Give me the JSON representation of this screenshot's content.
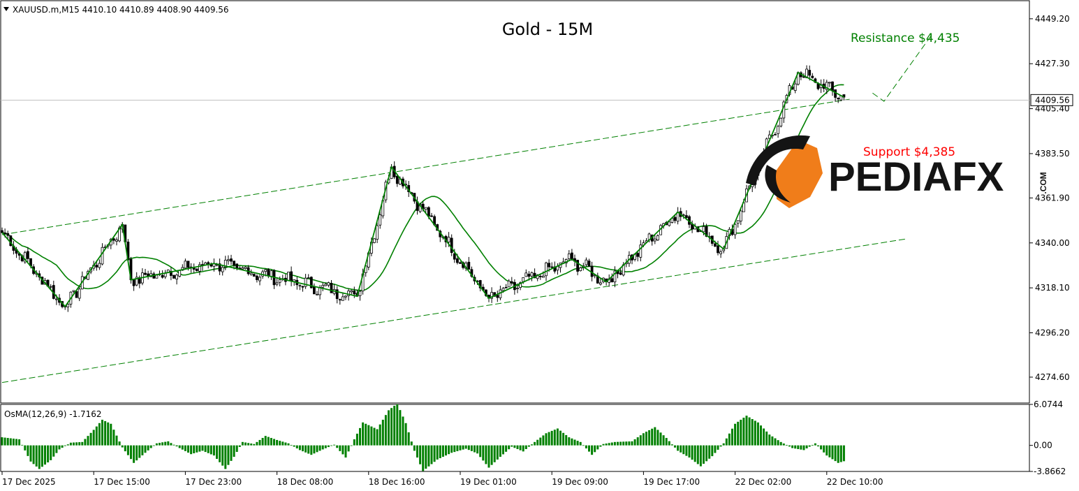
{
  "header": {
    "symbol_info": "XAUUSD.m,M15  4410.10 4410.89 4408.90 4409.56",
    "chart_title": "Gold - 15M",
    "indicator_label": "OsMA(12,26,9) -1.7162"
  },
  "annotations": {
    "resistance": "Resistance  $4,435",
    "support": "Support $4,385"
  },
  "logo": {
    "text": "PEDIAFX",
    "suffix": ".COM"
  },
  "colors": {
    "bull": "#008000",
    "support": "#ff0000",
    "logo_orange": "#f07d1a",
    "logo_dark": "#141414",
    "price_line": "#c0c0c0"
  },
  "chart_data": {
    "type": "candlestick",
    "symbol": "XAUUSD.m",
    "timeframe": "M15",
    "ohlc_last": {
      "open": 4410.1,
      "high": 4410.89,
      "low": 4408.9,
      "close": 4409.56
    },
    "current_price": 4409.56,
    "price_axis": {
      "ylim": [
        4262.0,
        4458.0
      ],
      "ticks": [
        4449.2,
        4427.3,
        4405.4,
        4383.5,
        4361.9,
        4340.0,
        4318.1,
        4296.2,
        4274.6
      ],
      "tick_labels": [
        "4449.20",
        "4427.30",
        "4405.40",
        "4383.50",
        "4361.90",
        "4340.00",
        "4318.10",
        "4296.20",
        "4274.60"
      ],
      "current_label": "4409.56"
    },
    "time_axis": {
      "labels": [
        "17 Dec 2025",
        "17 Dec 15:00",
        "17 Dec 23:00",
        "18 Dec 08:00",
        "18 Dec 16:00",
        "19 Dec 01:00",
        "19 Dec 09:00",
        "19 Dec 17:00",
        "22 Dec 02:00",
        "22 Dec 10:00"
      ],
      "bar_index": [
        0,
        32,
        64,
        96,
        128,
        160,
        192,
        224,
        256,
        288
      ]
    },
    "zigzag": [
      [
        0,
        4345
      ],
      [
        22,
        4309
      ],
      [
        42,
        4349
      ],
      [
        45,
        4322
      ],
      [
        74,
        4330
      ],
      [
        124,
        4314
      ],
      [
        136,
        4377
      ],
      [
        170,
        4313
      ],
      [
        199,
        4332
      ],
      [
        211,
        4321
      ],
      [
        236,
        4355
      ],
      [
        252,
        4337
      ],
      [
        278,
        4423
      ],
      [
        294,
        4411
      ]
    ],
    "channel": {
      "upper": [
        [
          0,
          4344
        ],
        [
          296,
          4410
        ]
      ],
      "lower": [
        [
          0,
          4272
        ],
        [
          316,
          4342
        ]
      ]
    },
    "projection": [
      [
        304,
        4413
      ],
      [
        308,
        4409
      ],
      [
        325,
        4442
      ]
    ],
    "resistance": 4435,
    "support": 4385,
    "osma": {
      "label": "OsMA(12,26,9)",
      "last_value": -1.7162,
      "ylim": [
        -3.8662,
        6.0744
      ],
      "ticks": [
        6.0744,
        0.0,
        -3.8662
      ],
      "tick_labels": [
        "6.0744",
        "0.00",
        "-3.8662"
      ],
      "samples": [
        [
          0,
          1.2
        ],
        [
          6,
          0.9
        ],
        [
          10,
          -2.4
        ],
        [
          13,
          -3.5
        ],
        [
          17,
          -2.2
        ],
        [
          20,
          -0.6
        ],
        [
          24,
          0.4
        ],
        [
          28,
          0.5
        ],
        [
          32,
          2.3
        ],
        [
          35,
          3.8
        ],
        [
          38,
          3.2
        ],
        [
          42,
          -0.3
        ],
        [
          46,
          -2.6
        ],
        [
          50,
          -1.1
        ],
        [
          54,
          0.3
        ],
        [
          58,
          0.6
        ],
        [
          62,
          -0.4
        ],
        [
          66,
          -1.3
        ],
        [
          70,
          -0.8
        ],
        [
          74,
          -1.5
        ],
        [
          78,
          -3.5
        ],
        [
          81,
          -1.7
        ],
        [
          84,
          0.5
        ],
        [
          88,
          0.2
        ],
        [
          92,
          1.4
        ],
        [
          96,
          0.8
        ],
        [
          100,
          0.3
        ],
        [
          104,
          -0.7
        ],
        [
          108,
          -1.4
        ],
        [
          112,
          -0.6
        ],
        [
          116,
          0.1
        ],
        [
          120,
          -1.8
        ],
        [
          123,
          0.9
        ],
        [
          126,
          3.4
        ],
        [
          131,
          2.4
        ],
        [
          135,
          5.2
        ],
        [
          138,
          6.2
        ],
        [
          141,
          3.3
        ],
        [
          144,
          -0.8
        ],
        [
          147,
          -3.8
        ],
        [
          152,
          -2.1
        ],
        [
          157,
          -1.1
        ],
        [
          162,
          -0.5
        ],
        [
          166,
          -1.2
        ],
        [
          170,
          -3.3
        ],
        [
          174,
          -1.7
        ],
        [
          178,
          -0.2
        ],
        [
          182,
          -0.9
        ],
        [
          186,
          0.5
        ],
        [
          190,
          1.8
        ],
        [
          194,
          2.5
        ],
        [
          198,
          1.2
        ],
        [
          202,
          0.5
        ],
        [
          206,
          -1.4
        ],
        [
          210,
          0.2
        ],
        [
          214,
          0.5
        ],
        [
          220,
          0.6
        ],
        [
          224,
          1.8
        ],
        [
          228,
          2.7
        ],
        [
          232,
          1.1
        ],
        [
          236,
          -0.8
        ],
        [
          240,
          -1.8
        ],
        [
          244,
          -3.1
        ],
        [
          248,
          -1.6
        ],
        [
          252,
          0.3
        ],
        [
          256,
          3.2
        ],
        [
          260,
          4.4
        ],
        [
          264,
          3.4
        ],
        [
          268,
          1.6
        ],
        [
          272,
          0.5
        ],
        [
          276,
          -0.4
        ],
        [
          280,
          -0.7
        ],
        [
          284,
          0.3
        ],
        [
          288,
          -1.5
        ],
        [
          292,
          -2.6
        ],
        [
          296,
          -2.1
        ],
        [
          301,
          -2.0
        ]
      ]
    }
  }
}
